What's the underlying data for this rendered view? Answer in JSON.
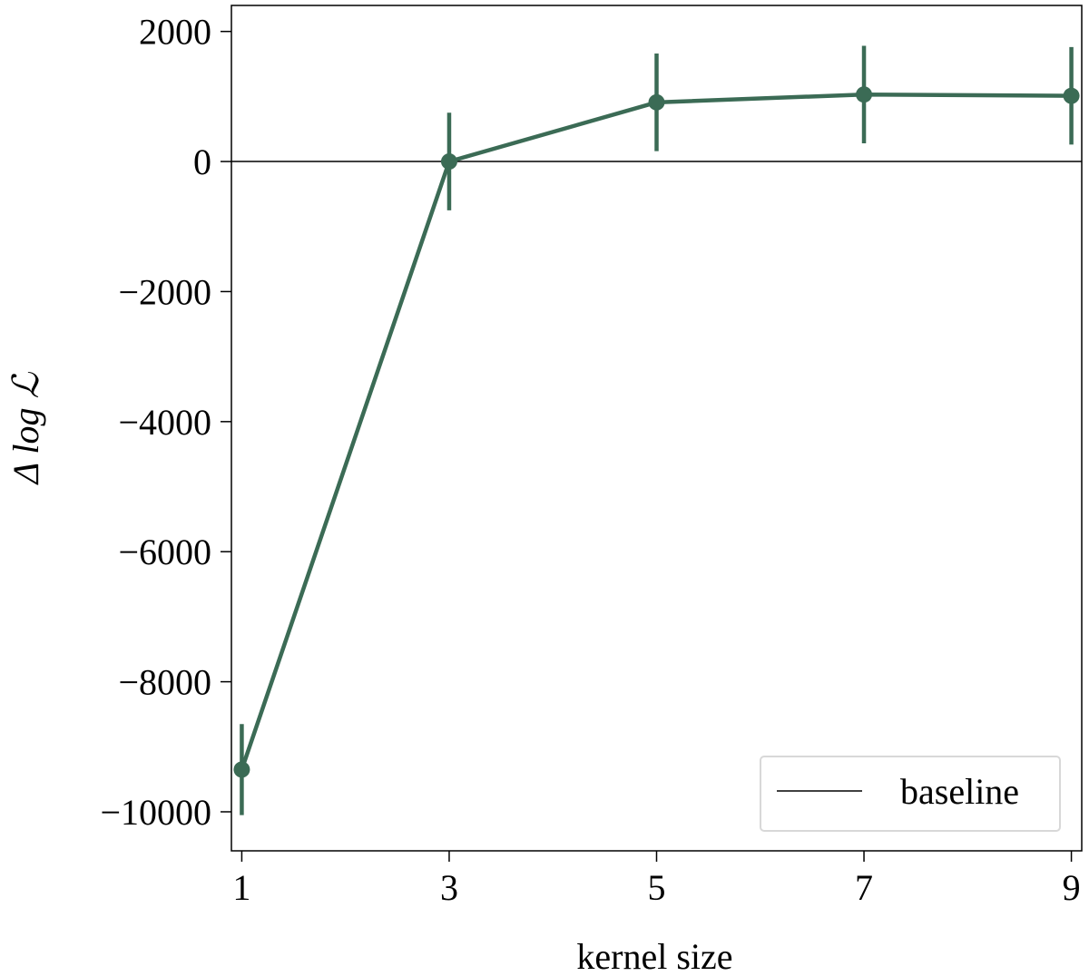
{
  "chart_data": {
    "type": "line",
    "title": "",
    "xlabel": "kernel size",
    "ylabel": "Δ log ℒ",
    "x": [
      1,
      3,
      5,
      7,
      9
    ],
    "xticks": [
      "1",
      "3",
      "5",
      "7",
      "9"
    ],
    "yticks": [
      "2000",
      "0",
      "−2000",
      "−4000",
      "−6000",
      "−8000",
      "−10000"
    ],
    "ytick_values": [
      2000,
      0,
      -2000,
      -4000,
      -6000,
      -8000,
      -10000
    ],
    "xlim": [
      0.9,
      9.1
    ],
    "ylim": [
      -10600,
      2400
    ],
    "grid": false,
    "legend": {
      "placement": "lower-right",
      "entries": [
        "baseline"
      ]
    },
    "series": [
      {
        "values": [
          -9350,
          0,
          910,
          1030,
          1010
        ],
        "yerr_low": [
          -10050,
          -750,
          160,
          280,
          260
        ],
        "yerr_high": [
          -8650,
          750,
          1660,
          1780,
          1760
        ],
        "color": "#3b6b55"
      }
    ],
    "reference_lines": [
      {
        "y": 0,
        "label": "baseline",
        "color": "#000000"
      }
    ]
  }
}
